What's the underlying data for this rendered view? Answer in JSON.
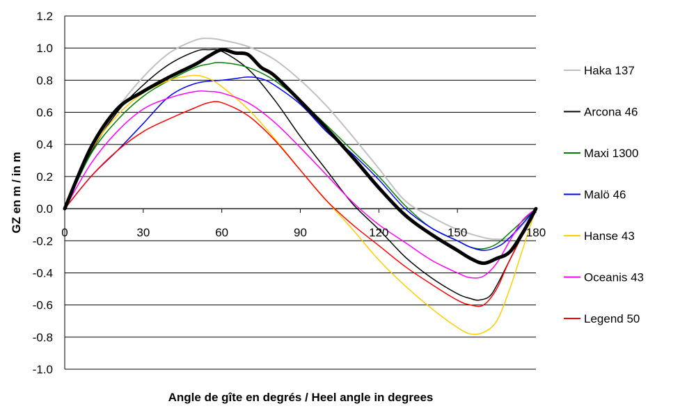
{
  "chart_data": {
    "type": "line",
    "title": "",
    "xlabel": "Angle de gîte en degrés / Heel angle in degrees",
    "ylabel": "GZ en m / in m",
    "xlim": [
      0,
      180
    ],
    "ylim": [
      -1.0,
      1.2
    ],
    "x_ticks": [
      0,
      30,
      60,
      90,
      120,
      150,
      180
    ],
    "x_tick_labels": [
      "0",
      "30",
      "60",
      "90",
      "120",
      "150",
      "180"
    ],
    "y_ticks": [
      1.2,
      1.0,
      0.8,
      0.6,
      0.4,
      0.2,
      0.0,
      -0.2,
      -0.4,
      -0.6,
      -0.8,
      -1.0
    ],
    "y_tick_labels": [
      "1.2",
      "1.0",
      "0.8",
      "0.6",
      "0.4",
      "0.2",
      "0.0",
      "-0.2",
      "-0.4",
      "-0.6",
      "-0.8",
      "-1.0"
    ],
    "grid": "horizontal",
    "legend_position": "right",
    "series": [
      {
        "name": "Haka 137",
        "color": "#c0c0c0",
        "width": 2,
        "x": [
          0,
          10,
          20,
          30,
          40,
          50,
          55,
          60,
          70,
          80,
          90,
          100,
          110,
          120,
          130,
          140,
          150,
          160,
          165,
          170,
          175,
          180
        ],
        "y": [
          0,
          0.35,
          0.62,
          0.82,
          0.97,
          1.05,
          1.06,
          1.05,
          1.01,
          0.93,
          0.8,
          0.64,
          0.45,
          0.25,
          0.05,
          -0.05,
          -0.13,
          -0.18,
          -0.19,
          -0.18,
          -0.1,
          0
        ]
      },
      {
        "name": "Arcona 46",
        "color": "#000000",
        "width": 1.5,
        "x": [
          0,
          10,
          20,
          30,
          40,
          50,
          55,
          60,
          70,
          80,
          90,
          100,
          110,
          120,
          130,
          140,
          150,
          155,
          158,
          162,
          165,
          170,
          180
        ],
        "y": [
          0,
          0.35,
          0.6,
          0.77,
          0.9,
          0.98,
          0.99,
          0.98,
          0.87,
          0.68,
          0.45,
          0.24,
          0.03,
          -0.13,
          -0.3,
          -0.43,
          -0.53,
          -0.56,
          -0.57,
          -0.55,
          -0.48,
          -0.32,
          0
        ]
      },
      {
        "name": "Maxi 1300",
        "color": "#008000",
        "width": 1.5,
        "x": [
          0,
          10,
          20,
          30,
          40,
          50,
          55,
          60,
          70,
          80,
          90,
          100,
          110,
          120,
          130,
          140,
          150,
          155,
          160,
          165,
          170,
          180
        ],
        "y": [
          0,
          0.34,
          0.55,
          0.7,
          0.8,
          0.88,
          0.9,
          0.91,
          0.88,
          0.8,
          0.67,
          0.52,
          0.36,
          0.2,
          0.02,
          -0.12,
          -0.2,
          -0.24,
          -0.25,
          -0.22,
          -0.15,
          0
        ]
      },
      {
        "name": "Malö 46",
        "color": "#0000ff",
        "width": 1.5,
        "x": [
          0,
          10,
          20,
          30,
          40,
          50,
          60,
          65,
          70,
          75,
          80,
          90,
          100,
          110,
          120,
          130,
          140,
          150,
          155,
          160,
          165,
          170,
          180
        ],
        "y": [
          0,
          0.2,
          0.36,
          0.53,
          0.7,
          0.78,
          0.8,
          0.81,
          0.82,
          0.81,
          0.77,
          0.65,
          0.48,
          0.34,
          0.18,
          0.0,
          -0.12,
          -0.2,
          -0.24,
          -0.26,
          -0.24,
          -0.18,
          0
        ]
      },
      {
        "name": "Hanse 43",
        "color": "#ffcc00",
        "width": 1.5,
        "x": [
          0,
          10,
          20,
          30,
          40,
          45,
          50,
          55,
          60,
          70,
          80,
          90,
          100,
          110,
          120,
          130,
          140,
          150,
          155,
          160,
          165,
          170,
          175,
          180
        ],
        "y": [
          0,
          0.36,
          0.58,
          0.72,
          0.8,
          0.82,
          0.83,
          0.81,
          0.76,
          0.62,
          0.44,
          0.24,
          0.05,
          -0.13,
          -0.32,
          -0.48,
          -0.62,
          -0.74,
          -0.78,
          -0.77,
          -0.7,
          -0.5,
          -0.25,
          0
        ]
      },
      {
        "name": "Oceanis 43",
        "color": "#ff00ff",
        "width": 1.5,
        "x": [
          0,
          10,
          20,
          30,
          40,
          50,
          55,
          60,
          70,
          80,
          90,
          100,
          110,
          120,
          130,
          140,
          150,
          155,
          160,
          165,
          170,
          175,
          180
        ],
        "y": [
          0,
          0.28,
          0.48,
          0.62,
          0.69,
          0.73,
          0.73,
          0.72,
          0.66,
          0.54,
          0.38,
          0.21,
          0.04,
          -0.1,
          -0.21,
          -0.32,
          -0.4,
          -0.43,
          -0.42,
          -0.34,
          -0.2,
          -0.07,
          0
        ]
      },
      {
        "name": "Legend 50",
        "color": "#ff0000",
        "width": 1.5,
        "x": [
          0,
          10,
          20,
          30,
          40,
          50,
          55,
          60,
          70,
          80,
          90,
          100,
          110,
          120,
          130,
          140,
          150,
          155,
          160,
          165,
          170,
          180
        ],
        "y": [
          0,
          0.2,
          0.36,
          0.48,
          0.56,
          0.63,
          0.66,
          0.66,
          0.58,
          0.43,
          0.24,
          0.05,
          -0.1,
          -0.23,
          -0.36,
          -0.47,
          -0.57,
          -0.6,
          -0.6,
          -0.5,
          -0.32,
          0
        ]
      },
      {
        "name": "",
        "color": "#000000",
        "width": 5,
        "x": [
          0,
          10,
          20,
          30,
          40,
          50,
          55,
          60,
          65,
          70,
          75,
          80,
          90,
          100,
          110,
          120,
          130,
          140,
          150,
          155,
          160,
          165,
          170,
          175,
          180
        ],
        "y": [
          0,
          0.38,
          0.62,
          0.73,
          0.82,
          0.9,
          0.95,
          0.99,
          0.97,
          0.96,
          0.88,
          0.83,
          0.67,
          0.5,
          0.32,
          0.13,
          -0.04,
          -0.16,
          -0.26,
          -0.31,
          -0.34,
          -0.31,
          -0.27,
          -0.15,
          0
        ]
      }
    ]
  }
}
